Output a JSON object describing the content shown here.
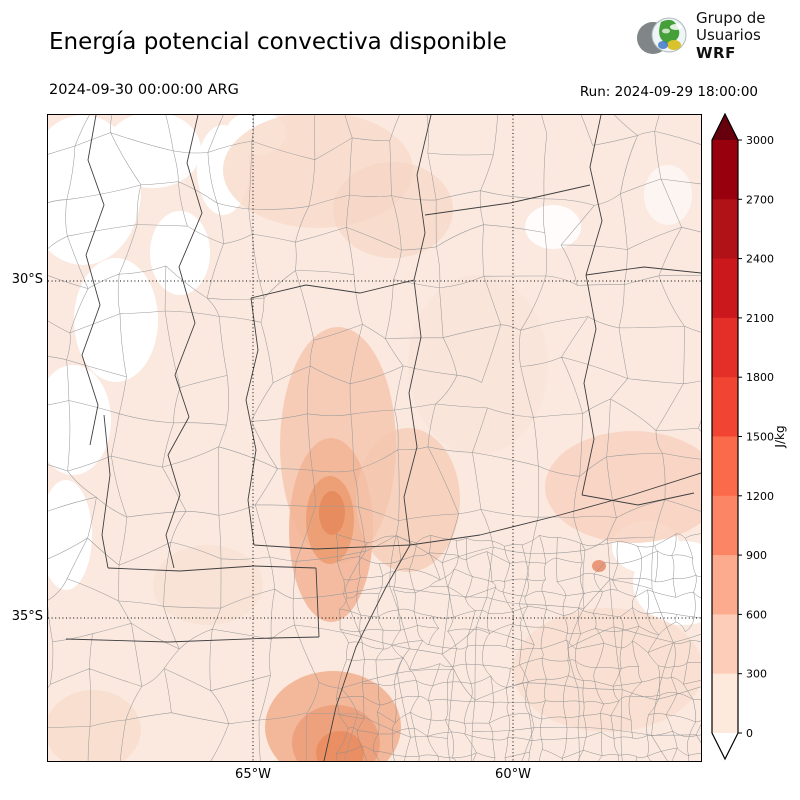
{
  "header": {
    "title": "Energía potencial convectiva disponible",
    "valid_time": "2024-09-30 00:00:00 ARG",
    "run_label": "Run: 2024-09-29 18:00:00",
    "logo": {
      "line1": "Grupo de",
      "line2": "Usuarios",
      "line3": "WRF"
    }
  },
  "map": {
    "lat_labels": [
      "30°S",
      "35°S"
    ],
    "lon_labels": [
      "65°W",
      "60°W"
    ]
  },
  "colorbar": {
    "unit": "J/kg",
    "tick_values": [
      3000,
      2700,
      2400,
      2100,
      1800,
      1500,
      1200,
      900,
      600,
      300,
      0
    ],
    "segment_colors_top_to_bottom": [
      "#99000d",
      "#b11218",
      "#cb181d",
      "#e32f27",
      "#f14432",
      "#fb6a4a",
      "#fc8565",
      "#fcab8e",
      "#fdcdb9",
      "#fee9dd"
    ],
    "over_color": "#67000d",
    "under_color": "#ffffff"
  }
}
